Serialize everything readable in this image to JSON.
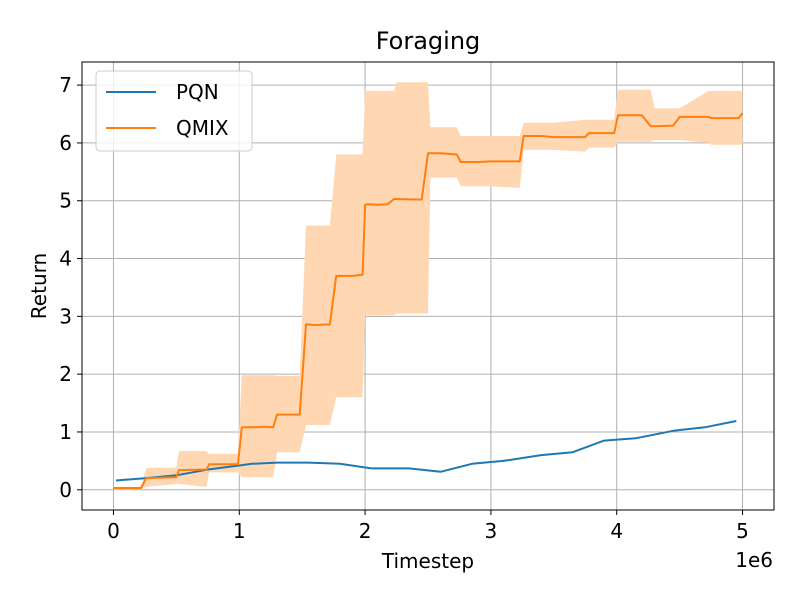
{
  "chart_data": {
    "type": "line",
    "title": "Foraging",
    "xlabel": "Timestep",
    "ylabel": "Return",
    "x_offset_text": "1e6",
    "xlim": [
      -0.25,
      5.25
    ],
    "ylim": [
      -0.35,
      7.4
    ],
    "xticks": [
      0,
      1,
      2,
      3,
      4,
      5
    ],
    "yticks": [
      0,
      1,
      2,
      3,
      4,
      5,
      6,
      7
    ],
    "grid": true,
    "legend": "top-left",
    "series": [
      {
        "name": "PQN",
        "color": "#1f77b4",
        "x": [
          0.02,
          0.25,
          0.5,
          0.75,
          1.0,
          1.1,
          1.3,
          1.55,
          1.8,
          2.05,
          2.35,
          2.6,
          2.85,
          3.1,
          3.4,
          3.65,
          3.9,
          4.15,
          4.45,
          4.7,
          4.95
        ],
        "y": [
          0.16,
          0.2,
          0.25,
          0.35,
          0.42,
          0.45,
          0.47,
          0.47,
          0.45,
          0.37,
          0.37,
          0.31,
          0.45,
          0.5,
          0.6,
          0.65,
          0.85,
          0.89,
          1.02,
          1.08,
          1.19
        ]
      },
      {
        "name": "QMIX",
        "color": "#ff7f0e",
        "band_color": "#ffd7b3",
        "x": [
          0.0,
          0.22,
          0.26,
          0.5,
          0.52,
          0.74,
          0.76,
          0.99,
          1.02,
          1.12,
          1.2,
          1.27,
          1.3,
          1.48,
          1.53,
          1.6,
          1.72,
          1.77,
          1.82,
          1.9,
          1.98,
          2.0,
          2.02,
          2.1,
          2.18,
          2.23,
          2.25,
          2.45,
          2.5,
          2.52,
          2.6,
          2.73,
          2.76,
          2.9,
          3.0,
          3.23,
          3.26,
          3.4,
          3.5,
          3.75,
          3.78,
          3.98,
          4.01,
          4.2,
          4.27,
          4.3,
          4.45,
          4.5,
          4.73,
          4.75,
          4.97,
          5.0
        ],
        "y": [
          0.03,
          0.03,
          0.2,
          0.22,
          0.34,
          0.35,
          0.44,
          0.44,
          1.08,
          1.08,
          1.09,
          1.08,
          1.3,
          1.3,
          2.86,
          2.85,
          2.86,
          3.7,
          3.7,
          3.7,
          3.72,
          4.93,
          4.94,
          4.93,
          4.94,
          5.03,
          5.03,
          5.02,
          5.82,
          5.82,
          5.82,
          5.8,
          5.67,
          5.67,
          5.68,
          5.68,
          6.12,
          6.12,
          6.1,
          6.1,
          6.17,
          6.17,
          6.48,
          6.48,
          6.29,
          6.29,
          6.3,
          6.45,
          6.45,
          6.43,
          6.43,
          6.52
        ],
        "band_x": [
          0.0,
          0.22,
          0.26,
          0.5,
          0.52,
          0.74,
          0.76,
          0.99,
          1.02,
          1.27,
          1.3,
          1.48,
          1.53,
          1.72,
          1.77,
          1.98,
          2.0,
          2.23,
          2.25,
          2.5,
          2.52,
          2.73,
          2.76,
          3.0,
          3.23,
          3.26,
          3.5,
          3.75,
          3.78,
          3.98,
          4.01,
          4.27,
          4.3,
          4.5,
          4.73,
          4.75,
          5.0
        ],
        "band_low": [
          0.02,
          0.02,
          0.05,
          0.1,
          0.1,
          0.05,
          0.3,
          0.3,
          0.22,
          0.22,
          0.65,
          0.65,
          1.12,
          1.12,
          1.6,
          1.6,
          3.02,
          3.02,
          3.05,
          3.05,
          5.4,
          5.4,
          5.25,
          5.25,
          5.22,
          5.88,
          5.88,
          5.85,
          5.92,
          5.92,
          6.02,
          6.02,
          6.05,
          6.05,
          6.0,
          5.97,
          5.97
        ],
        "band_high": [
          0.05,
          0.05,
          0.38,
          0.38,
          0.67,
          0.67,
          0.62,
          0.62,
          1.98,
          1.98,
          1.97,
          1.97,
          4.57,
          4.57,
          5.8,
          5.8,
          6.9,
          6.9,
          7.05,
          7.05,
          6.27,
          6.27,
          6.12,
          6.12,
          6.12,
          6.35,
          6.35,
          6.4,
          6.4,
          6.4,
          6.92,
          6.92,
          6.6,
          6.6,
          6.9,
          6.9,
          6.9
        ]
      }
    ]
  }
}
